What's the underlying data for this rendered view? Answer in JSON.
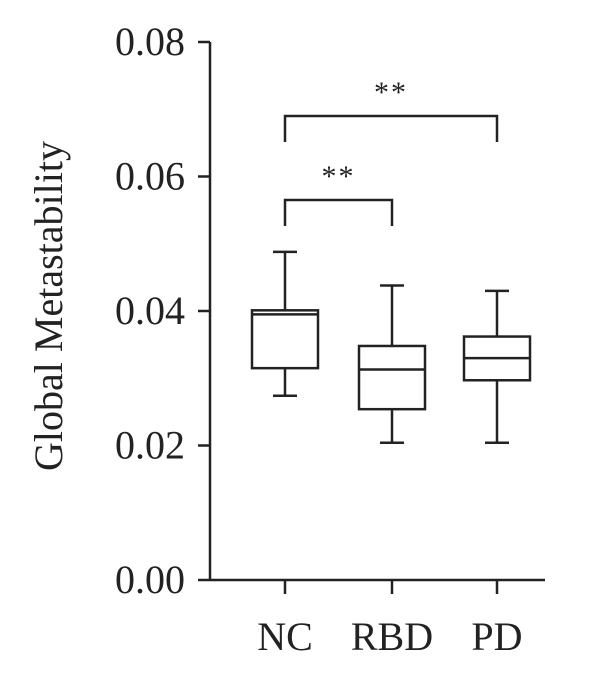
{
  "chart_data": {
    "type": "box",
    "ylabel": "Global Metastability",
    "ylim": [
      0,
      0.08
    ],
    "yticks": [
      "0.00",
      "0.02",
      "0.04",
      "0.06",
      "0.08"
    ],
    "yticks_values": [
      0,
      0.02,
      0.04,
      0.06,
      0.08
    ],
    "grid": false,
    "categories": [
      "NC",
      "RBD",
      "PD"
    ],
    "boxes": [
      {
        "name": "NC",
        "min": 0.0274,
        "q1": 0.0315,
        "median": 0.0395,
        "q3": 0.0401,
        "max": 0.0488,
        "color": "#3a3f9a"
      },
      {
        "name": "RBD",
        "min": 0.0204,
        "q1": 0.0254,
        "median": 0.0313,
        "q3": 0.0348,
        "max": 0.0438,
        "color": "#e5a03c"
      },
      {
        "name": "PD",
        "min": 0.0204,
        "q1": 0.0297,
        "median": 0.033,
        "q3": 0.0362,
        "max": 0.043,
        "color": "#c8141c"
      }
    ],
    "significance": [
      {
        "from": "NC",
        "to": "RBD",
        "label": "**",
        "y": 0.0565
      },
      {
        "from": "NC",
        "to": "PD",
        "label": "**",
        "y": 0.069
      }
    ]
  }
}
